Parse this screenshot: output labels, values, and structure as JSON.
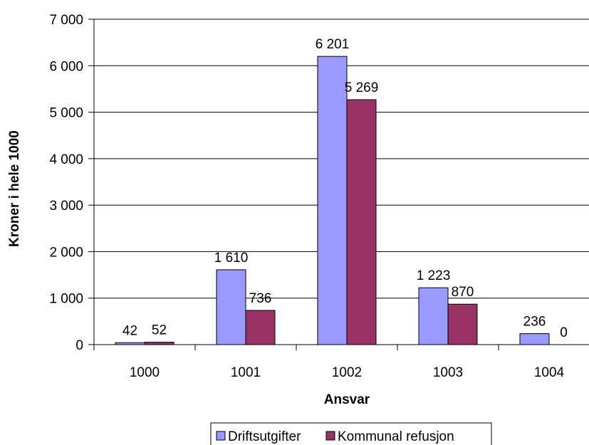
{
  "chart_data": {
    "type": "bar",
    "title": "",
    "xlabel": "Ansvar",
    "ylabel": "Kroner i hele 1000",
    "categories": [
      "1000",
      "1001",
      "1002",
      "1003",
      "1004"
    ],
    "series": [
      {
        "name": "Driftsutgifter",
        "color": "#9999ff",
        "values": [
          42,
          1610,
          6201,
          1223,
          236
        ],
        "labels": [
          "42",
          "1 610",
          "6 201",
          "1 223",
          "236"
        ]
      },
      {
        "name": "Kommunal refusjon",
        "color": "#993366",
        "values": [
          52,
          736,
          5269,
          870,
          0
        ],
        "labels": [
          "52",
          "736",
          "5 269",
          "870",
          "0"
        ]
      }
    ],
    "ylim": [
      0,
      7000
    ],
    "yticks": [
      0,
      1000,
      2000,
      3000,
      4000,
      5000,
      6000,
      7000
    ],
    "ytick_labels": [
      "0",
      "1 000",
      "2 000",
      "3 000",
      "4 000",
      "5 000",
      "6 000",
      "7 000"
    ],
    "grid": true,
    "legend_position": "bottom"
  }
}
